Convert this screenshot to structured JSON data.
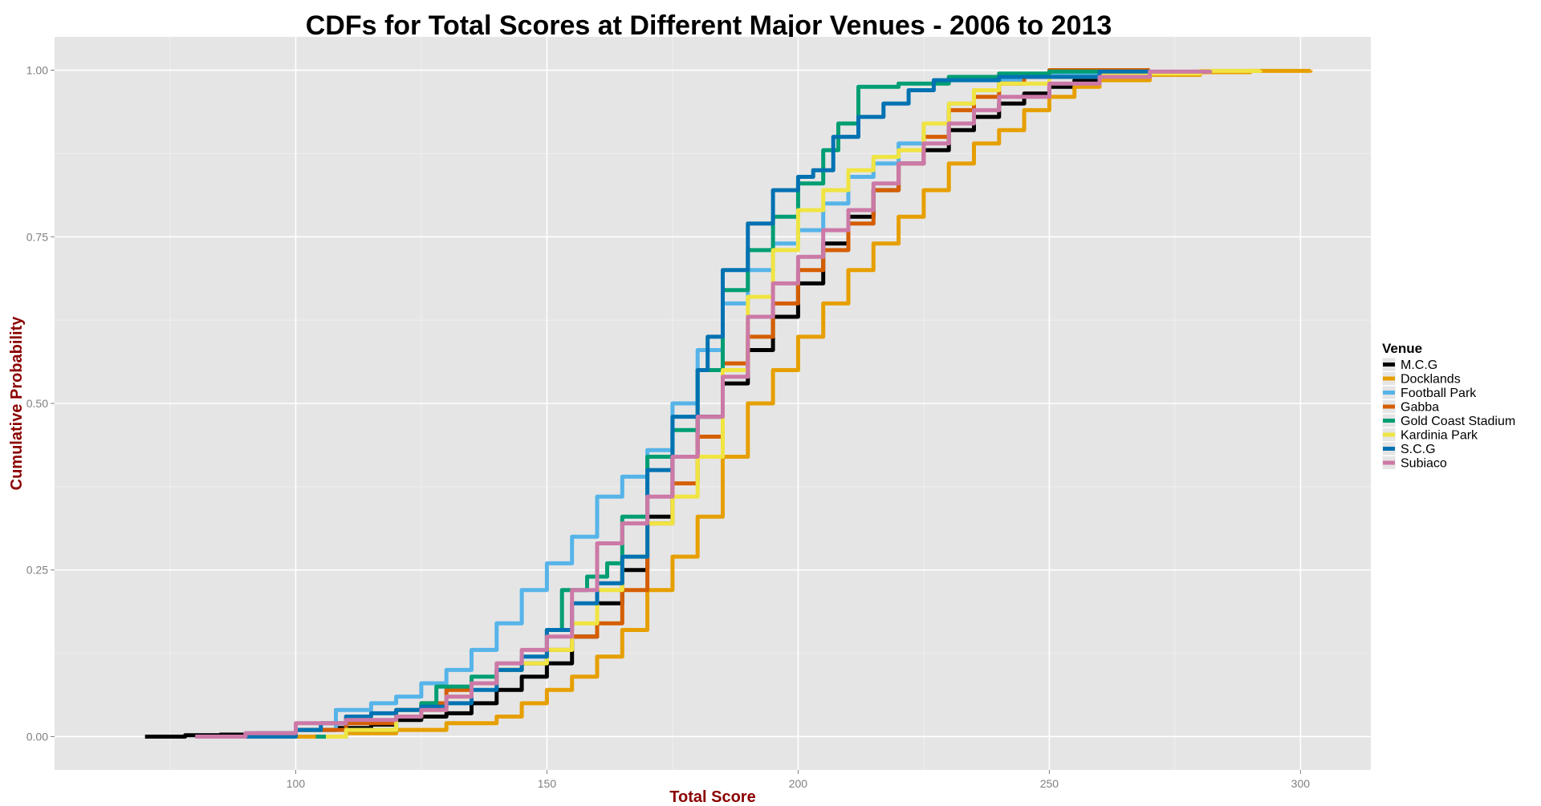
{
  "chart_data": {
    "type": "line",
    "title": "CDFs for Total Scores at Different Major Venues - 2006 to 2013",
    "xlabel": "Total Score",
    "ylabel": "Cumulative Probability",
    "xlim": [
      52,
      314
    ],
    "ylim": [
      -0.05,
      1.05
    ],
    "x_ticks": [
      100,
      150,
      200,
      250,
      300
    ],
    "x_tick_labels": [
      "100",
      "150",
      "200",
      "250",
      "300"
    ],
    "y_ticks": [
      0,
      0.25,
      0.5,
      0.75,
      1
    ],
    "y_tick_labels": [
      "0.00",
      "0.25",
      "0.50",
      "0.75",
      "1.00"
    ],
    "grid": true,
    "legend": {
      "title": "Venue",
      "position": "right"
    },
    "series": [
      {
        "name": "M.C.G",
        "color": "#000000",
        "x": [
          70,
          78,
          85,
          92,
          100,
          108,
          115,
          120,
          125,
          130,
          135,
          140,
          145,
          150,
          155,
          160,
          165,
          170,
          175,
          180,
          185,
          190,
          195,
          200,
          205,
          210,
          215,
          220,
          225,
          230,
          235,
          240,
          245,
          250,
          255,
          260,
          265,
          270
        ],
        "y": [
          0,
          0.002,
          0.003,
          0.005,
          0.01,
          0.013,
          0.018,
          0.025,
          0.03,
          0.035,
          0.05,
          0.07,
          0.09,
          0.11,
          0.15,
          0.2,
          0.25,
          0.33,
          0.42,
          0.48,
          0.53,
          0.58,
          0.63,
          0.68,
          0.74,
          0.78,
          0.82,
          0.86,
          0.88,
          0.91,
          0.93,
          0.95,
          0.965,
          0.975,
          0.985,
          0.99,
          0.995,
          1.0
        ]
      },
      {
        "name": "Docklands",
        "color": "#e69f00",
        "x": [
          100,
          110,
          120,
          130,
          140,
          145,
          150,
          155,
          160,
          165,
          170,
          175,
          180,
          185,
          190,
          195,
          200,
          205,
          210,
          215,
          220,
          225,
          230,
          235,
          240,
          245,
          250,
          255,
          260,
          270,
          280,
          290,
          302
        ],
        "y": [
          0,
          0.005,
          0.01,
          0.02,
          0.03,
          0.05,
          0.07,
          0.09,
          0.12,
          0.16,
          0.22,
          0.27,
          0.33,
          0.42,
          0.5,
          0.55,
          0.6,
          0.65,
          0.7,
          0.74,
          0.78,
          0.82,
          0.86,
          0.89,
          0.91,
          0.94,
          0.96,
          0.975,
          0.985,
          0.993,
          0.997,
          0.999,
          1.0
        ]
      },
      {
        "name": "Football Park",
        "color": "#56b4e9",
        "x": [
          80,
          90,
          100,
          108,
          115,
          120,
          125,
          130,
          135,
          140,
          145,
          150,
          155,
          160,
          165,
          170,
          175,
          180,
          185,
          190,
          195,
          200,
          205,
          210,
          215,
          220,
          225,
          230,
          235,
          240,
          245,
          250,
          260,
          270
        ],
        "y": [
          0,
          0.005,
          0.01,
          0.04,
          0.05,
          0.06,
          0.08,
          0.1,
          0.13,
          0.17,
          0.22,
          0.26,
          0.3,
          0.36,
          0.39,
          0.43,
          0.5,
          0.58,
          0.65,
          0.7,
          0.74,
          0.76,
          0.8,
          0.84,
          0.86,
          0.89,
          0.92,
          0.95,
          0.97,
          0.985,
          0.99,
          0.995,
          0.998,
          1.0
        ]
      },
      {
        "name": "Gabba",
        "color": "#d55e00",
        "x": [
          96,
          100,
          110,
          120,
          125,
          130,
          135,
          140,
          145,
          150,
          155,
          160,
          165,
          170,
          175,
          180,
          185,
          190,
          195,
          200,
          205,
          210,
          215,
          220,
          225,
          230,
          235,
          240,
          245,
          250,
          260,
          270
        ],
        "y": [
          0,
          0.01,
          0.02,
          0.04,
          0.05,
          0.07,
          0.08,
          0.1,
          0.11,
          0.13,
          0.15,
          0.17,
          0.22,
          0.32,
          0.38,
          0.45,
          0.56,
          0.6,
          0.65,
          0.7,
          0.73,
          0.77,
          0.82,
          0.86,
          0.9,
          0.94,
          0.96,
          0.98,
          0.99,
          1.0,
          1.0,
          1.0
        ]
      },
      {
        "name": "Gold Coast Stadium",
        "color": "#009e73",
        "x": [
          104,
          110,
          120,
          125,
          128,
          135,
          140,
          145,
          150,
          153,
          158,
          162,
          165,
          170,
          175,
          180,
          185,
          190,
          195,
          200,
          205,
          208,
          212,
          220,
          230,
          240,
          250,
          260
        ],
        "y": [
          0,
          0.01,
          0.03,
          0.05,
          0.075,
          0.09,
          0.1,
          0.11,
          0.16,
          0.22,
          0.24,
          0.26,
          0.33,
          0.42,
          0.46,
          0.55,
          0.67,
          0.73,
          0.78,
          0.83,
          0.88,
          0.92,
          0.975,
          0.98,
          0.99,
          0.995,
          0.998,
          1.0
        ]
      },
      {
        "name": "Kardinia Park",
        "color": "#f0e442",
        "x": [
          106,
          110,
          120,
          125,
          130,
          135,
          140,
          145,
          150,
          155,
          160,
          165,
          170,
          175,
          180,
          185,
          190,
          195,
          200,
          205,
          210,
          215,
          220,
          225,
          230,
          235,
          240,
          250,
          260,
          280,
          292
        ],
        "y": [
          0,
          0.01,
          0.03,
          0.04,
          0.06,
          0.08,
          0.1,
          0.11,
          0.13,
          0.17,
          0.22,
          0.27,
          0.32,
          0.36,
          0.42,
          0.55,
          0.66,
          0.73,
          0.79,
          0.82,
          0.85,
          0.87,
          0.88,
          0.92,
          0.95,
          0.97,
          0.98,
          0.99,
          0.995,
          0.999,
          1.0
        ]
      },
      {
        "name": "S.C.G",
        "color": "#0072b2",
        "x": [
          90,
          100,
          105,
          110,
          115,
          120,
          125,
          130,
          135,
          140,
          145,
          150,
          155,
          160,
          165,
          170,
          175,
          180,
          182,
          185,
          190,
          195,
          200,
          203,
          207,
          212,
          217,
          222,
          227,
          240,
          260,
          270
        ],
        "y": [
          0,
          0.01,
          0.02,
          0.03,
          0.035,
          0.04,
          0.045,
          0.05,
          0.07,
          0.1,
          0.12,
          0.16,
          0.2,
          0.23,
          0.27,
          0.4,
          0.48,
          0.55,
          0.6,
          0.7,
          0.77,
          0.82,
          0.84,
          0.85,
          0.9,
          0.93,
          0.95,
          0.97,
          0.985,
          0.99,
          0.998,
          1.0
        ]
      },
      {
        "name": "Subiaco",
        "color": "#cc79a7",
        "x": [
          80,
          90,
          100,
          110,
          120,
          125,
          130,
          135,
          140,
          145,
          150,
          155,
          160,
          165,
          170,
          175,
          180,
          185,
          190,
          195,
          200,
          205,
          210,
          215,
          220,
          225,
          230,
          235,
          240,
          250,
          260,
          270,
          282
        ],
        "y": [
          0,
          0.005,
          0.02,
          0.025,
          0.03,
          0.04,
          0.06,
          0.08,
          0.11,
          0.13,
          0.15,
          0.22,
          0.29,
          0.32,
          0.36,
          0.42,
          0.48,
          0.54,
          0.63,
          0.68,
          0.72,
          0.76,
          0.79,
          0.83,
          0.86,
          0.89,
          0.92,
          0.94,
          0.96,
          0.98,
          0.99,
          0.998,
          1.0
        ]
      }
    ]
  }
}
